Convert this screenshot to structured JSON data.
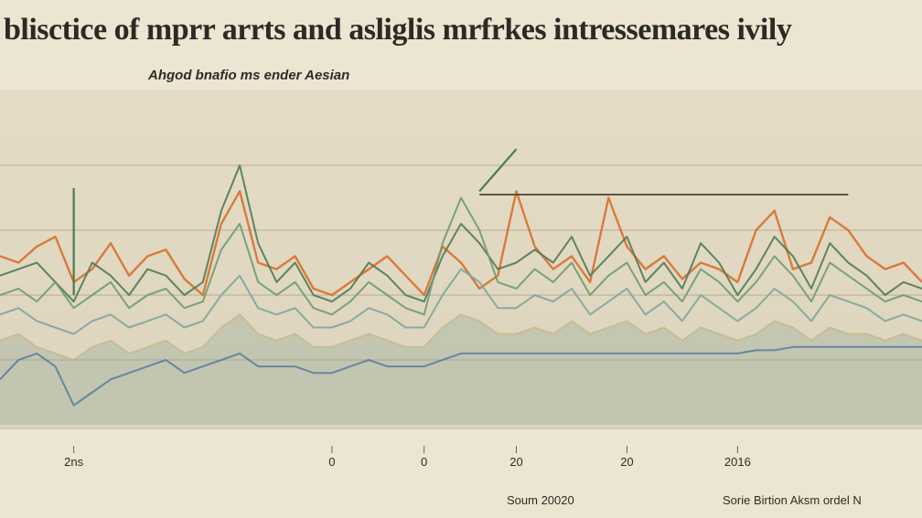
{
  "chart_data": {
    "type": "line",
    "title": "blisctice of mprr arrts and asliglis mrfrkes intressemares ivily",
    "subtitle": "Ahgod bnafio ms ender Aesian",
    "xlabel": "",
    "ylabel": "",
    "x": [
      0,
      1,
      2,
      3,
      4,
      5,
      6,
      7,
      8,
      9,
      10,
      11,
      12,
      13,
      14,
      15,
      16,
      17,
      18,
      19,
      20,
      21,
      22,
      23,
      24,
      25,
      26,
      27,
      28,
      29,
      30,
      31,
      32,
      33,
      34,
      35,
      36,
      37,
      38,
      39,
      40,
      41,
      42,
      43,
      44,
      45,
      46,
      47,
      48,
      49,
      50
    ],
    "x_tick_labels": [
      "2ns",
      "0",
      "0",
      "20",
      "20",
      "2016"
    ],
    "ylim": [
      0,
      100
    ],
    "grid": true,
    "colors": {
      "orange": "#d9702b",
      "dark_green": "#4f7a55",
      "green": "#6f9a72",
      "teal": "#7fa59c",
      "blue": "#5c7fa0",
      "sand": "#c9b98f"
    },
    "series": [
      {
        "color": "orange",
        "values": [
          52,
          50,
          55,
          58,
          44,
          48,
          56,
          46,
          52,
          54,
          45,
          40,
          62,
          72,
          50,
          48,
          52,
          42,
          40,
          44,
          48,
          52,
          46,
          40,
          55,
          50,
          42,
          46,
          72,
          55,
          48,
          52,
          44,
          70,
          55,
          48,
          52,
          45,
          50,
          48,
          44,
          60,
          66,
          48,
          50,
          64,
          60,
          52,
          48,
          50,
          44
        ]
      },
      {
        "color": "dark_green",
        "values": [
          46,
          48,
          50,
          44,
          38,
          50,
          46,
          40,
          48,
          46,
          40,
          44,
          66,
          80,
          56,
          44,
          50,
          40,
          38,
          42,
          50,
          46,
          40,
          38,
          52,
          62,
          56,
          48,
          50,
          54,
          50,
          58,
          46,
          52,
          58,
          44,
          50,
          42,
          56,
          50,
          40,
          48,
          58,
          52,
          42,
          56,
          50,
          46,
          40,
          44,
          42
        ]
      },
      {
        "color": "green",
        "values": [
          40,
          42,
          38,
          44,
          36,
          40,
          44,
          36,
          40,
          42,
          36,
          38,
          54,
          62,
          44,
          40,
          44,
          36,
          34,
          38,
          44,
          40,
          36,
          34,
          56,
          70,
          60,
          44,
          42,
          48,
          44,
          50,
          40,
          46,
          50,
          40,
          44,
          38,
          48,
          44,
          38,
          44,
          52,
          46,
          38,
          50,
          46,
          42,
          38,
          40,
          38
        ]
      },
      {
        "color": "teal",
        "values": [
          34,
          36,
          32,
          30,
          28,
          32,
          34,
          30,
          32,
          34,
          30,
          32,
          40,
          46,
          36,
          34,
          36,
          30,
          30,
          32,
          36,
          34,
          30,
          30,
          40,
          48,
          44,
          36,
          36,
          40,
          38,
          42,
          34,
          38,
          42,
          34,
          38,
          32,
          40,
          36,
          32,
          36,
          42,
          38,
          32,
          40,
          38,
          36,
          32,
          34,
          32
        ]
      },
      {
        "color": "sand",
        "values": [
          26,
          28,
          24,
          22,
          20,
          24,
          26,
          22,
          24,
          26,
          22,
          24,
          30,
          34,
          28,
          26,
          28,
          24,
          24,
          26,
          28,
          26,
          24,
          24,
          30,
          34,
          32,
          28,
          28,
          30,
          28,
          32,
          28,
          30,
          32,
          28,
          30,
          26,
          30,
          28,
          26,
          28,
          32,
          30,
          26,
          30,
          28,
          28,
          26,
          28,
          26
        ]
      },
      {
        "color": "blue",
        "values": [
          14,
          20,
          22,
          18,
          6,
          10,
          14,
          16,
          18,
          20,
          16,
          18,
          20,
          22,
          18,
          18,
          18,
          16,
          16,
          18,
          20,
          18,
          18,
          18,
          20,
          22,
          22,
          22,
          22,
          22,
          22,
          22,
          22,
          22,
          22,
          22,
          22,
          22,
          22,
          22,
          22,
          23,
          23,
          24,
          24,
          24,
          24,
          24,
          24,
          24,
          24
        ]
      }
    ],
    "annotations": [
      {
        "color": "dark_green",
        "start_x": 26,
        "start_y": 72,
        "end_x": 28,
        "end_y": 85
      },
      {
        "color": "dark_green",
        "start_x": 4,
        "start_y": 73,
        "end_x": 4,
        "end_y": 40
      }
    ],
    "reference_lines": [
      {
        "color": "dark",
        "y": 71,
        "x_start": 26,
        "x_end": 46
      }
    ],
    "source_left": "Soum 20020",
    "source_right": "Sorie Birtion Aksm ordel N"
  }
}
